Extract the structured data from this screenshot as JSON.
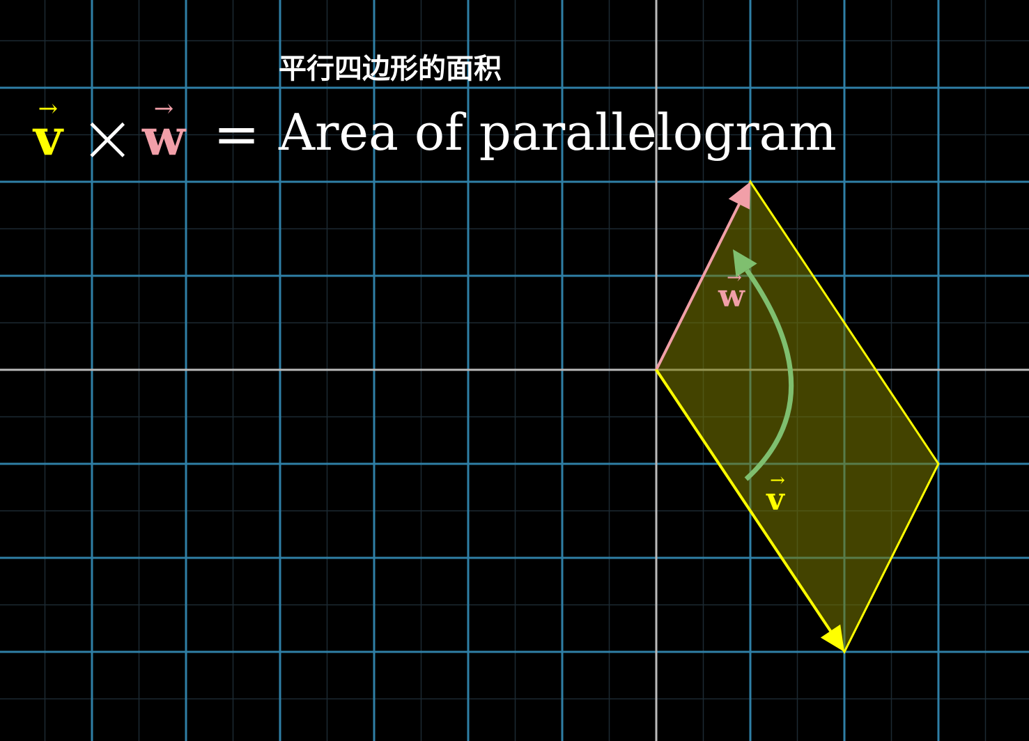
{
  "subtitle": "平行四边形的面积",
  "formula": {
    "v_symbol": "v",
    "times_symbol": "×",
    "w_symbol": "w",
    "equals_symbol": "=",
    "rhs_text": "Area of parallelogram"
  },
  "labels": {
    "v_label": "v",
    "w_label": "w",
    "vector_arrow": "→"
  },
  "colors": {
    "background": "#000000",
    "grid_major": "#2f7fa6",
    "grid_minor": "#1c2a33",
    "axis": "#bbbbbb",
    "vector_v": "#ffff00",
    "vector_w": "#f19fa8",
    "fill": "#7a7a00",
    "rotation_arrow": "#7fbf6f",
    "text": "#ffffff"
  },
  "vectors": {
    "v": [
      2,
      -3
    ],
    "w": [
      1,
      2
    ]
  }
}
